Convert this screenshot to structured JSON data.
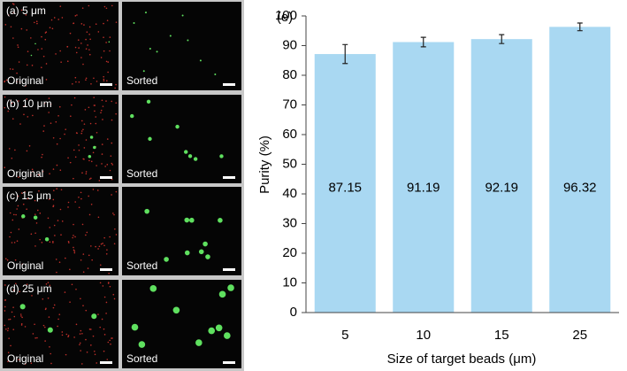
{
  "image_panels": [
    {
      "label": "(a) 5 μm",
      "left": "Original",
      "right": "Sorted"
    },
    {
      "label": "(b) 10 μm",
      "left": "Original",
      "right": "Sorted"
    },
    {
      "label": "(c) 15 μm",
      "left": "Original",
      "right": "Sorted"
    },
    {
      "label": "(d) 25 μm",
      "left": "Original",
      "right": "Sorted"
    }
  ],
  "chart_data": {
    "type": "bar",
    "panel_label": "(e)",
    "x_label": "Size of target beads (μm)",
    "y_label": "Purity (%)",
    "categories": [
      "5",
      "10",
      "15",
      "25"
    ],
    "values": [
      87.15,
      91.19,
      92.19,
      96.32
    ],
    "errors": [
      3.2,
      1.6,
      1.5,
      1.3
    ],
    "color": "#a9d8f2",
    "ylim": [
      0,
      100
    ],
    "yticks": [
      0,
      10,
      20,
      30,
      40,
      50,
      60,
      70,
      80,
      90,
      100
    ],
    "grid": false
  }
}
